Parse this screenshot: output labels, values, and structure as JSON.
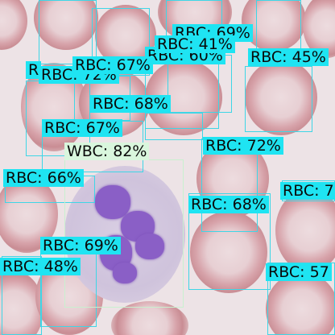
{
  "detections": [
    {
      "id": "rbc-top-center",
      "label": "RBC: 69%"
    },
    {
      "id": "rbc-top-41",
      "label": "RBC: 41%"
    },
    {
      "id": "rbc-top-60",
      "label": "RBC: 60%"
    },
    {
      "id": "rbc-top-right-45",
      "label": "RBC: 45%"
    },
    {
      "id": "rbc-left-72",
      "label": "RBC: 72%"
    },
    {
      "id": "rbc-67-upper",
      "label": "RBC: 67%"
    },
    {
      "id": "rbc-68-mid",
      "label": "RBC: 68%"
    },
    {
      "id": "rbc-67-left",
      "label": "RBC: 67%"
    },
    {
      "id": "wbc-82",
      "label": "WBC: 82%"
    },
    {
      "id": "rbc-right-72",
      "label": "RBC: 72%"
    },
    {
      "id": "rbc-left-66",
      "label": "RBC: 66%"
    },
    {
      "id": "rbc-far-right",
      "label": "RBC: 7"
    },
    {
      "id": "rbc-right-68",
      "label": "RBC: 68%"
    },
    {
      "id": "rbc-bottom-69",
      "label": "RBC: 69%"
    },
    {
      "id": "rbc-bottom-48",
      "label": "RBC: 48%"
    },
    {
      "id": "rbc-bottom-right-57",
      "label": "RBC: 57"
    },
    {
      "id": "rbc-left-edge",
      "label": "R"
    }
  ],
  "colors": {
    "rbc_box": "#3ed6e6",
    "rbc_label_bg": "#1fe4f2",
    "wbc_box": "#c9f0cf",
    "wbc_label_bg": "#d9f6dd"
  }
}
